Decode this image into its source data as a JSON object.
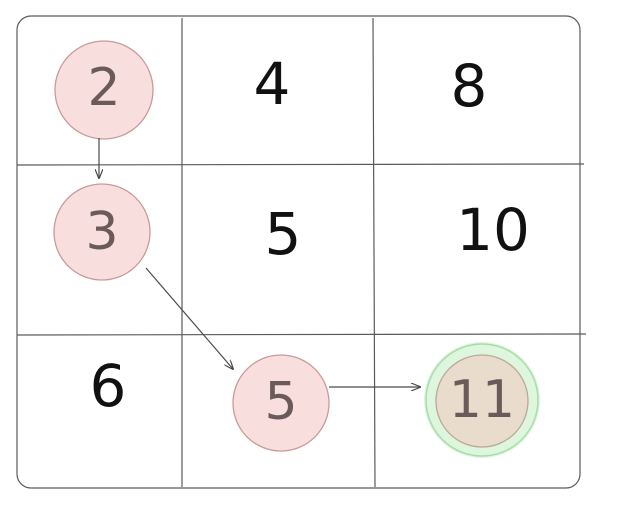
{
  "grid": {
    "rows": [
      [
        "2",
        "4",
        "8"
      ],
      [
        "3",
        "5",
        "10"
      ],
      [
        "6",
        "5",
        "11"
      ]
    ]
  },
  "path": {
    "cells": [
      {
        "row": 0,
        "col": 0,
        "value": "2",
        "fill": "#f9dede",
        "stroke": "#c99a9a"
      },
      {
        "row": 1,
        "col": 0,
        "value": "3",
        "fill": "#f9dede",
        "stroke": "#c99a9a"
      },
      {
        "row": 2,
        "col": 1,
        "value": "5",
        "fill": "#f9dede",
        "stroke": "#c99a9a"
      },
      {
        "row": 2,
        "col": 2,
        "value": "11",
        "fill": "#eadccd",
        "stroke": "#b8a898",
        "glow": "#c8f0c8"
      }
    ]
  },
  "colors": {
    "grid_line": "#5a5a5a",
    "number": "#111111",
    "circle_number": "#6b5a5a",
    "arrow": "#4a4a4a"
  }
}
